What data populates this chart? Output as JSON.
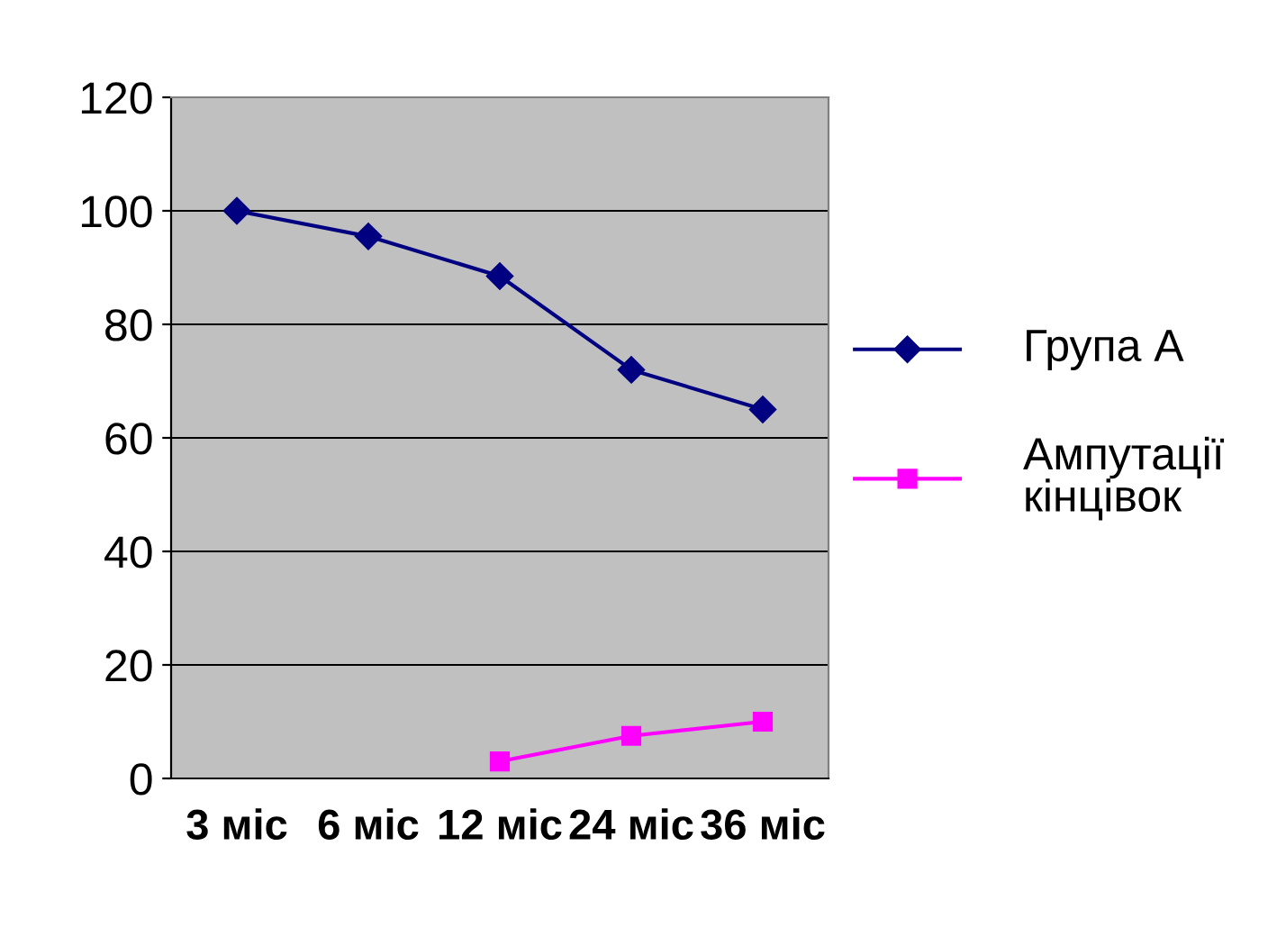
{
  "chart_data": {
    "type": "line",
    "categories": [
      "3 міс",
      "6 міс",
      "12 міс",
      "24 міс",
      "36 міс"
    ],
    "series": [
      {
        "name": "Група А",
        "color": "#000080",
        "marker": "diamond",
        "values": [
          100,
          95.5,
          88.5,
          72,
          65
        ]
      },
      {
        "name": "Ампутації кінцівок",
        "color": "#ff00ff",
        "marker": "square",
        "values": [
          null,
          null,
          3,
          7.5,
          10
        ]
      }
    ],
    "ylim": [
      0,
      120
    ],
    "yticks": [
      0,
      20,
      40,
      60,
      80,
      100,
      120
    ],
    "grid": "y",
    "legend": "right"
  }
}
